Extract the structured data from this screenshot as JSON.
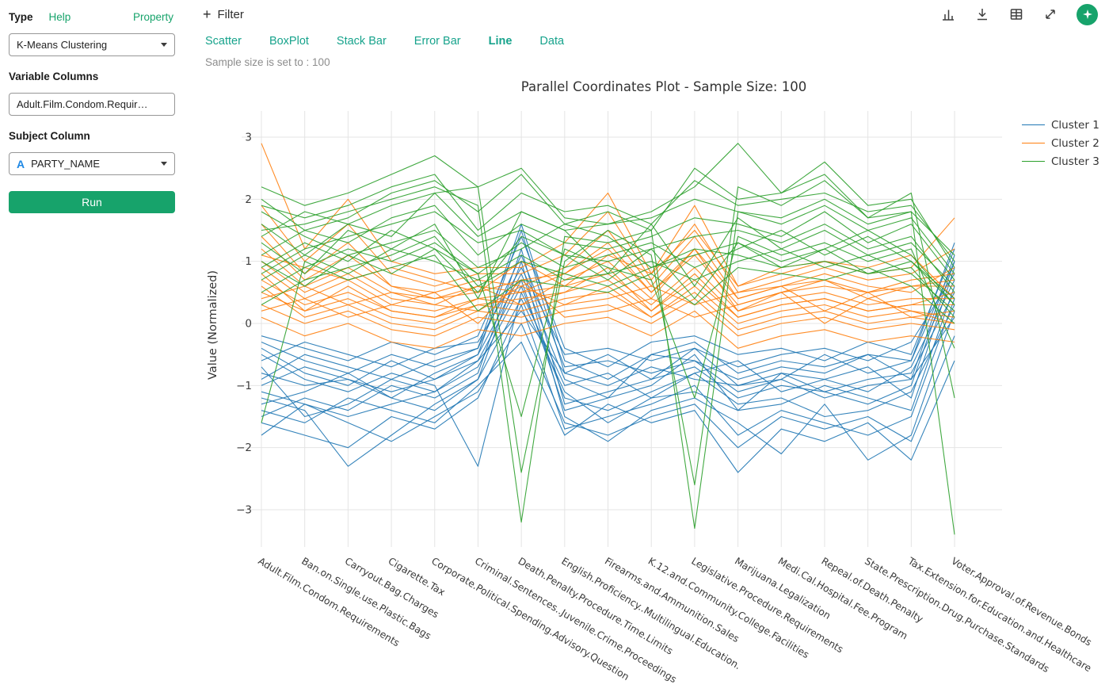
{
  "colors": {
    "accent_green": "#17a36b",
    "tab_green": "#17a38c",
    "subject_icon_blue": "#1e88e5",
    "grid": "#e4e4e4",
    "cluster1": "#1f77b4",
    "cluster2": "#ff7f0e",
    "cluster3": "#2ca02c"
  },
  "sidebar": {
    "type_label": "Type",
    "help_link": "Help",
    "property_link": "Property",
    "clustering_select": "K-Means Clustering",
    "variable_columns_label": "Variable Columns",
    "variable_columns_value": "Adult.Film.Condom.Requir…",
    "subject_column_label": "Subject Column",
    "subject_icon": "A",
    "subject_value": "PARTY_NAME",
    "run_button": "Run"
  },
  "toolbar": {
    "filter_label": "Filter",
    "icons": [
      "plus-icon",
      "bar-chart-icon",
      "download-icon",
      "table-icon",
      "expand-icon",
      "star-badge-icon"
    ]
  },
  "tabs": {
    "items": [
      {
        "label": "Scatter",
        "active": false
      },
      {
        "label": "BoxPlot",
        "active": false
      },
      {
        "label": "Stack Bar",
        "active": false
      },
      {
        "label": "Error Bar",
        "active": false
      },
      {
        "label": "Line",
        "active": true
      },
      {
        "label": "Data",
        "active": false
      }
    ]
  },
  "sample_note": "Sample size is set to : 100",
  "chart_data": {
    "type": "line",
    "variant": "parallel-coordinates",
    "title": "Parallel Coordinates Plot - Sample Size: 100",
    "ylabel": "Value (Normalized)",
    "ylim": [
      -3.6,
      3.4
    ],
    "yticks": [
      -3,
      -2,
      -1,
      0,
      1,
      2,
      3
    ],
    "grid": true,
    "legend_position": "top-right",
    "legend": [
      "Cluster 1",
      "Cluster 2",
      "Cluster 3"
    ],
    "categories": [
      "Adult.Film.Condom.Requirements",
      "Ban.on.Single.use.Plastic.Bags",
      "Carryout.Bag.Charges",
      "Cigarette.Tax",
      "Corporate.Political.Spending.Advisory.Question",
      "Criminal.Sentences..Juvenile.Crime.Proceedings",
      "Death.Penalty.Procedure.Time.Limits",
      "English.Proficiency..Multilingual.Education.",
      "Firearms.and.Ammunition.Sales",
      "K.12.and.Community.College.Facilities",
      "Legislative.Procedure.Requirements",
      "Marijuana.Legalization",
      "Medi.Cal.Hospital.Fee.Program",
      "Repeal.of.Death.Penalty",
      "State.Prescription.Drug.Purchase.Standards",
      "Tax.Extension.for.Education.and.Healthcare",
      "Voter.Approval.of.Revenue.Bonds"
    ],
    "series": [
      {
        "name": "Cluster 1",
        "color": "#1f77b4",
        "lines": [
          [
            -0.3,
            -0.6,
            -0.8,
            -0.5,
            -0.7,
            -0.4,
            1.6,
            -0.6,
            -0.9,
            -0.5,
            -0.3,
            -0.8,
            -0.6,
            -0.7,
            -0.5,
            -0.6,
            1.3
          ],
          [
            -1.5,
            -1.2,
            -1.4,
            -1.0,
            -1.2,
            -0.8,
            1.2,
            -1.3,
            -1.1,
            -0.9,
            -0.7,
            -1.2,
            -1.0,
            -1.1,
            -1.3,
            -1.0,
            1.0
          ],
          [
            -0.8,
            -1.0,
            -0.9,
            -1.2,
            -0.8,
            -0.5,
            0.8,
            -0.9,
            -1.2,
            -1.0,
            -0.5,
            -1.4,
            -0.8,
            -0.9,
            -1.1,
            -0.7,
            0.7
          ],
          [
            -1.6,
            -1.8,
            -2.0,
            -1.5,
            -1.7,
            -1.2,
            0.3,
            -1.7,
            -1.5,
            -1.3,
            -1.0,
            -1.8,
            -1.4,
            -1.6,
            -1.8,
            -1.5,
            0.4
          ],
          [
            -0.5,
            -0.9,
            -1.1,
            -0.8,
            -1.0,
            -2.3,
            0.5,
            -1.0,
            -0.8,
            -1.2,
            -0.8,
            -0.6,
            -1.1,
            -0.9,
            -0.7,
            -1.2,
            0.9
          ],
          [
            -1.2,
            -1.4,
            -2.3,
            -1.8,
            -1.3,
            -0.9,
            1.0,
            -1.5,
            -1.9,
            -1.4,
            -1.2,
            -1.6,
            -2.1,
            -1.3,
            -2.2,
            -1.8,
            0.2
          ],
          [
            -0.2,
            -0.4,
            -0.6,
            -0.3,
            -0.5,
            -0.2,
            1.4,
            -0.4,
            -0.7,
            -0.3,
            -0.2,
            -0.5,
            -0.4,
            -0.6,
            -0.3,
            -0.5,
            1.2
          ],
          [
            -1.0,
            -0.7,
            -0.9,
            -1.1,
            -0.9,
            -0.6,
            0.2,
            -0.8,
            -1.0,
            -0.7,
            -0.9,
            -1.0,
            -0.8,
            -1.1,
            -0.9,
            -0.8,
            0.5
          ],
          [
            -1.4,
            -1.6,
            -1.2,
            -1.4,
            -1.6,
            -1.0,
            -0.3,
            -1.8,
            -1.3,
            -1.6,
            -1.4,
            -2.4,
            -1.7,
            -1.9,
            -1.6,
            -2.2,
            -0.6
          ],
          [
            -0.6,
            -0.3,
            -0.5,
            -0.7,
            -0.4,
            -0.3,
            0.9,
            -0.5,
            -0.4,
            -0.6,
            -0.4,
            -0.7,
            -0.5,
            -0.4,
            -0.6,
            -0.3,
            0.8
          ],
          [
            -1.1,
            -1.3,
            -1.5,
            -1.3,
            -1.1,
            -0.7,
            0.6,
            -1.2,
            -1.4,
            -1.1,
            -0.8,
            -1.3,
            -1.2,
            -1.5,
            -1.4,
            -1.1,
            0.3
          ],
          [
            -0.9,
            -0.5,
            -0.7,
            -0.9,
            -0.6,
            -0.4,
            1.1,
            -0.7,
            -0.6,
            -0.8,
            -0.6,
            -0.9,
            -0.7,
            -0.8,
            -0.5,
            -0.9,
            1.1
          ],
          [
            -0.4,
            -0.8,
            -1.0,
            -0.6,
            -0.9,
            -0.5,
            1.5,
            -0.8,
            -0.5,
            -0.9,
            -0.4,
            -1.0,
            -0.9,
            -0.5,
            -0.8,
            -0.6,
            1.0
          ],
          [
            -1.3,
            -1.1,
            -0.8,
            -1.2,
            -1.4,
            -0.9,
            0.4,
            -1.1,
            -1.6,
            -1.2,
            -1.1,
            -1.4,
            -1.3,
            -1.0,
            -1.2,
            -1.4,
            0.6
          ],
          [
            -0.7,
            -1.5,
            -1.3,
            -0.9,
            -1.1,
            -0.6,
            0.7,
            -1.4,
            -1.2,
            -0.5,
            -0.6,
            -1.1,
            -0.9,
            -1.2,
            -1.0,
            -0.9,
            0.1
          ],
          [
            -1.8,
            -1.3,
            -1.6,
            -1.9,
            -1.5,
            -1.1,
            0.0,
            -1.6,
            -1.8,
            -1.5,
            -1.3,
            -2.0,
            -1.5,
            -1.7,
            -1.5,
            -1.9,
            -0.2
          ]
        ]
      },
      {
        "name": "Cluster 2",
        "color": "#ff7f0e",
        "lines": [
          [
            2.9,
            1.2,
            2.0,
            1.0,
            0.8,
            0.9,
            0.9,
            1.3,
            2.1,
            0.8,
            1.9,
            0.6,
            0.9,
            1.0,
            0.8,
            0.9,
            1.7
          ],
          [
            1.6,
            0.8,
            1.3,
            0.6,
            0.5,
            0.7,
            0.6,
            0.9,
            1.5,
            0.6,
            1.4,
            0.4,
            0.6,
            0.8,
            0.6,
            0.5,
            0.9
          ],
          [
            0.9,
            0.4,
            0.7,
            0.3,
            0.2,
            0.4,
            0.5,
            0.6,
            0.8,
            0.3,
            0.9,
            0.2,
            0.4,
            0.5,
            0.3,
            0.4,
            0.4
          ],
          [
            0.5,
            0.2,
            0.4,
            0.1,
            0.0,
            0.3,
            0.2,
            0.4,
            0.5,
            0.1,
            0.6,
            0.0,
            0.2,
            0.3,
            0.1,
            0.2,
            0.1
          ],
          [
            1.2,
            0.6,
            0.9,
            0.5,
            0.4,
            0.5,
            0.7,
            0.8,
            1.2,
            0.5,
            1.1,
            0.3,
            0.5,
            0.7,
            0.4,
            0.6,
            0.6
          ],
          [
            0.3,
            0.0,
            0.2,
            -0.1,
            -0.2,
            0.1,
            0.0,
            0.2,
            0.3,
            0.0,
            0.4,
            -0.2,
            0.0,
            0.1,
            -0.1,
            0.0,
            -0.1
          ],
          [
            0.7,
            0.3,
            0.5,
            0.2,
            0.1,
            0.3,
            0.4,
            0.5,
            0.7,
            0.2,
            0.7,
            0.1,
            0.3,
            0.4,
            0.2,
            0.3,
            0.3
          ],
          [
            1.9,
            1.0,
            1.6,
            0.8,
            0.6,
            0.8,
            0.8,
            1.1,
            1.8,
            0.7,
            1.6,
            0.5,
            0.7,
            0.9,
            0.7,
            0.8,
            1.2
          ],
          [
            0.1,
            -0.2,
            0.0,
            -0.3,
            -0.4,
            -0.1,
            -0.2,
            0.0,
            0.1,
            -0.2,
            0.2,
            -0.4,
            -0.2,
            -0.1,
            -0.3,
            -0.2,
            -0.3
          ],
          [
            0.4,
            0.6,
            0.3,
            0.5,
            0.3,
            0.2,
            0.6,
            0.3,
            0.4,
            0.6,
            0.3,
            0.5,
            0.6,
            0.2,
            0.5,
            0.1,
            0.2
          ],
          [
            1.0,
            0.5,
            0.8,
            0.4,
            0.3,
            0.6,
            0.3,
            0.7,
            1.0,
            0.4,
            1.2,
            0.2,
            0.5,
            0.6,
            0.5,
            0.7,
            0.8
          ],
          [
            0.6,
            0.1,
            0.3,
            0.0,
            -0.1,
            0.2,
            0.1,
            0.3,
            0.6,
            0.1,
            0.5,
            -0.1,
            0.1,
            0.2,
            0.0,
            0.1,
            0.0
          ],
          [
            1.4,
            0.7,
            1.1,
            0.6,
            0.4,
            0.6,
            0.5,
            0.8,
            1.3,
            0.5,
            1.2,
            0.4,
            0.6,
            0.7,
            0.5,
            0.6,
            0.7
          ],
          [
            0.8,
            0.2,
            0.6,
            0.2,
            0.1,
            0.4,
            0.3,
            0.5,
            0.9,
            0.2,
            0.8,
            0.1,
            0.3,
            0.4,
            0.2,
            0.3,
            0.5
          ],
          [
            0.2,
            0.4,
            0.1,
            0.3,
            0.5,
            0.0,
            0.7,
            0.1,
            0.2,
            0.4,
            0.1,
            0.3,
            0.5,
            0.0,
            0.4,
            0.2,
            0.0
          ],
          [
            1.1,
            0.9,
            0.7,
            0.9,
            0.7,
            0.5,
            1.0,
            0.6,
            1.1,
            0.8,
            1.5,
            0.6,
            0.8,
            1.0,
            0.9,
            1.1,
            0.4
          ]
        ]
      },
      {
        "name": "Cluster 3",
        "color": "#2ca02c",
        "lines": [
          [
            2.2,
            1.9,
            2.1,
            2.4,
            2.7,
            2.2,
            2.5,
            1.7,
            1.6,
            1.8,
            2.2,
            2.9,
            2.1,
            2.6,
            1.9,
            2.0,
            0.9
          ],
          [
            1.5,
            1.6,
            1.8,
            2.0,
            2.2,
            1.9,
            -3.2,
            1.4,
            1.3,
            1.5,
            -3.3,
            1.8,
            1.7,
            2.0,
            1.6,
            1.8,
            -3.4
          ],
          [
            0.8,
            1.2,
            1.4,
            1.6,
            1.8,
            1.3,
            1.5,
            1.1,
            1.0,
            1.2,
            1.4,
            1.5,
            1.3,
            1.6,
            1.2,
            1.4,
            0.5
          ],
          [
            1.8,
            1.4,
            1.1,
            1.3,
            1.5,
            0.9,
            1.2,
            1.6,
            1.4,
            0.9,
            1.1,
            1.3,
            1.0,
            1.2,
            1.5,
            1.1,
            0.3
          ],
          [
            0.5,
            0.9,
            1.2,
            1.0,
            1.3,
            0.8,
            -1.5,
            1.2,
            0.9,
            0.7,
            -1.2,
            1.4,
            1.1,
            1.3,
            1.0,
            1.2,
            -0.4
          ],
          [
            1.1,
            1.5,
            1.3,
            1.7,
            1.9,
            1.1,
            1.6,
            1.3,
            1.2,
            1.4,
            1.7,
            1.6,
            1.4,
            1.8,
            1.3,
            1.6,
            0.7
          ],
          [
            0.3,
            0.7,
            0.9,
            1.1,
            1.4,
            0.6,
            1.0,
            0.8,
            0.6,
            0.9,
            1.2,
            1.1,
            0.9,
            1.0,
            0.8,
            0.9,
            0.1
          ],
          [
            1.6,
            1.1,
            1.6,
            1.4,
            2.1,
            2.2,
            -2.4,
            1.0,
            1.5,
            1.1,
            -2.6,
            2.2,
            1.9,
            2.3,
            1.7,
            2.1,
            -1.2
          ],
          [
            0.9,
            1.3,
            1.0,
            1.5,
            1.2,
            0.8,
            1.3,
            0.9,
            1.1,
            1.3,
            0.9,
            1.2,
            1.5,
            1.1,
            1.4,
            1.0,
            0.4
          ],
          [
            1.3,
            0.8,
            1.5,
            1.2,
            1.6,
            0.4,
            1.8,
            1.5,
            0.8,
            1.6,
            0.6,
            1.7,
            1.2,
            1.5,
            1.1,
            1.3,
            0.6
          ],
          [
            -1.6,
            1.0,
            0.7,
            0.9,
            1.1,
            0.2,
            0.7,
            0.6,
            0.5,
            0.8,
            0.3,
            0.9,
            0.8,
            0.7,
            0.9,
            0.6,
            0.0
          ],
          [
            1.9,
            1.7,
            1.9,
            2.2,
            2.4,
            1.5,
            2.1,
            1.8,
            1.9,
            1.6,
            2.3,
            1.9,
            2.0,
            2.1,
            1.8,
            1.9,
            1.0
          ],
          [
            0.7,
            1.1,
            0.8,
            1.2,
            1.0,
            0.7,
            1.1,
            0.7,
            0.8,
            1.0,
            0.7,
            1.0,
            1.2,
            0.9,
            1.1,
            0.8,
            0.2
          ],
          [
            1.4,
            1.8,
            1.6,
            1.9,
            2.1,
            1.4,
            1.8,
            1.5,
            1.6,
            1.7,
            2.0,
            1.8,
            1.6,
            1.9,
            1.5,
            1.7,
            0.8
          ],
          [
            1.0,
            0.6,
            1.1,
            0.8,
            1.2,
            0.5,
            1.4,
            1.1,
            0.7,
            1.2,
            0.4,
            1.3,
            0.9,
            1.2,
            0.8,
            1.0,
            0.3
          ],
          [
            2.0,
            1.5,
            1.7,
            2.1,
            2.3,
            1.8,
            2.4,
            1.6,
            1.8,
            1.5,
            2.5,
            2.0,
            2.1,
            2.4,
            1.7,
            1.8,
            1.1
          ]
        ]
      }
    ]
  }
}
